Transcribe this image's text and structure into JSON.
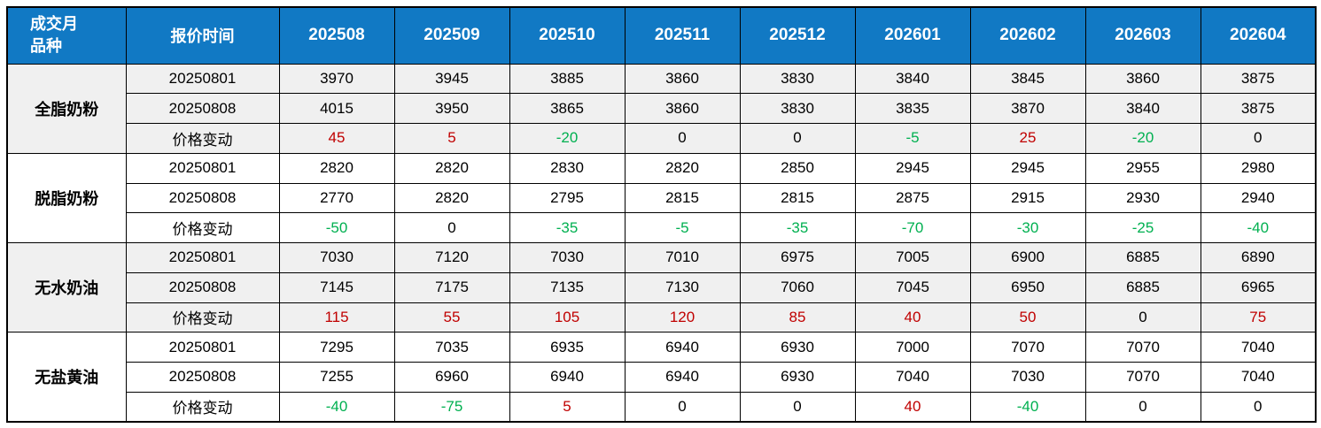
{
  "styles": {
    "header_bg": "#1179C4",
    "header_text": "#FFFFFF",
    "positive": "#C00000",
    "negative": "#00B050",
    "neutral": "#000000",
    "shaded_row_bg": "#F0F0F0",
    "white_row_bg": "#FFFFFF",
    "border": "#000000"
  },
  "chart_data": {
    "type": "table",
    "corner_header": {
      "line1": "成交月",
      "line2": "品种"
    },
    "quote_time_header": "报价时间",
    "month_columns": [
      "202508",
      "202509",
      "202510",
      "202511",
      "202512",
      "202601",
      "202602",
      "202603",
      "202604"
    ],
    "change_row_label": "价格变动",
    "groups": [
      {
        "product": "全脂奶粉",
        "shaded": true,
        "rows": [
          {
            "label": "20250801",
            "values": [
              3970,
              3945,
              3885,
              3860,
              3830,
              3840,
              3845,
              3860,
              3875
            ]
          },
          {
            "label": "20250808",
            "values": [
              4015,
              3950,
              3865,
              3860,
              3830,
              3835,
              3870,
              3840,
              3875
            ]
          }
        ],
        "change": [
          45,
          5,
          -20,
          0,
          0,
          -5,
          25,
          -20,
          0
        ]
      },
      {
        "product": "脱脂奶粉",
        "shaded": false,
        "rows": [
          {
            "label": "20250801",
            "values": [
              2820,
              2820,
              2830,
              2820,
              2850,
              2945,
              2945,
              2955,
              2980
            ]
          },
          {
            "label": "20250808",
            "values": [
              2770,
              2820,
              2795,
              2815,
              2815,
              2875,
              2915,
              2930,
              2940
            ]
          }
        ],
        "change": [
          -50,
          0,
          -35,
          -5,
          -35,
          -70,
          -30,
          -25,
          -40
        ]
      },
      {
        "product": "无水奶油",
        "shaded": true,
        "rows": [
          {
            "label": "20250801",
            "values": [
              7030,
              7120,
              7030,
              7010,
              6975,
              7005,
              6900,
              6885,
              6890
            ]
          },
          {
            "label": "20250808",
            "values": [
              7145,
              7175,
              7135,
              7130,
              7060,
              7045,
              6950,
              6885,
              6965
            ]
          }
        ],
        "change": [
          115,
          55,
          105,
          120,
          85,
          40,
          50,
          0,
          75
        ]
      },
      {
        "product": "无盐黄油",
        "shaded": false,
        "rows": [
          {
            "label": "20250801",
            "values": [
              7295,
              7035,
              6935,
              6940,
              6930,
              7000,
              7070,
              7070,
              7040
            ]
          },
          {
            "label": "20250808",
            "values": [
              7255,
              6960,
              6940,
              6940,
              6930,
              7040,
              7030,
              7070,
              7040
            ]
          }
        ],
        "change": [
          -40,
          -75,
          5,
          0,
          0,
          40,
          -40,
          0,
          0
        ]
      }
    ]
  }
}
